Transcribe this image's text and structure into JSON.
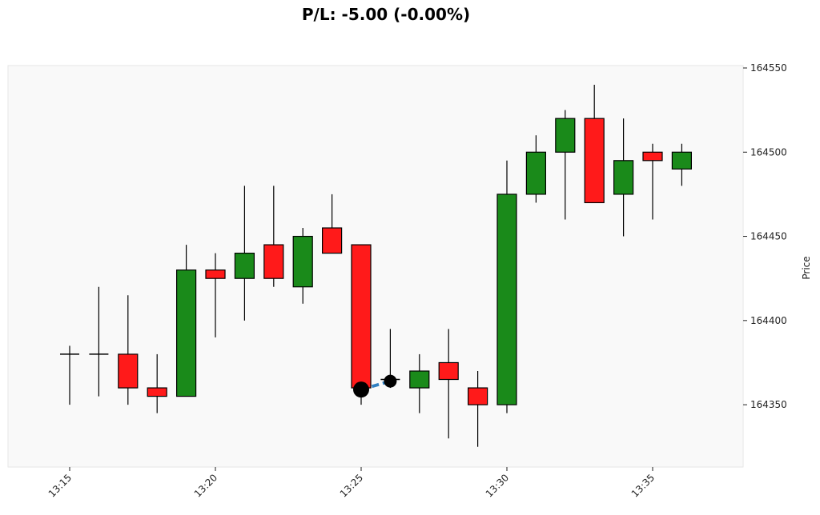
{
  "chart_data": {
    "type": "candlestick",
    "title": "P/L: -5.00 (-0.00%)",
    "ylabel": "Price",
    "xlabel": "",
    "ylim": [
      164313,
      164550
    ],
    "yticks": [
      164350,
      164400,
      164450,
      164500,
      164550
    ],
    "xticks": [
      {
        "t": "13:15",
        "label": "13:15"
      },
      {
        "t": "13:20",
        "label": "13:20"
      },
      {
        "t": "13:25",
        "label": "13:25"
      },
      {
        "t": "13:30",
        "label": "13:30"
      },
      {
        "t": "13:35",
        "label": "13:35"
      }
    ],
    "grid": false,
    "colors": {
      "up": "#1a8a1a",
      "down": "#ff1a1a",
      "background": "#f9f9f9",
      "trade_line": "#2f7fc1",
      "marker": "#000000"
    },
    "candles": [
      {
        "t": "13:15",
        "open": 164380,
        "high": 164385,
        "low": 164350,
        "close": 164380
      },
      {
        "t": "13:16",
        "open": 164380,
        "high": 164420,
        "low": 164355,
        "close": 164380
      },
      {
        "t": "13:17",
        "open": 164380,
        "high": 164415,
        "low": 164350,
        "close": 164360
      },
      {
        "t": "13:18",
        "open": 164360,
        "high": 164380,
        "low": 164345,
        "close": 164355
      },
      {
        "t": "13:19",
        "open": 164355,
        "high": 164445,
        "low": 164355,
        "close": 164430
      },
      {
        "t": "13:20",
        "open": 164430,
        "high": 164440,
        "low": 164390,
        "close": 164425
      },
      {
        "t": "13:21",
        "open": 164425,
        "high": 164480,
        "low": 164400,
        "close": 164440
      },
      {
        "t": "13:22",
        "open": 164445,
        "high": 164480,
        "low": 164420,
        "close": 164425
      },
      {
        "t": "13:23",
        "open": 164420,
        "high": 164455,
        "low": 164410,
        "close": 164450
      },
      {
        "t": "13:24",
        "open": 164455,
        "high": 164475,
        "low": 164440,
        "close": 164440
      },
      {
        "t": "13:25",
        "open": 164445,
        "high": 164445,
        "low": 164350,
        "close": 164360
      },
      {
        "t": "13:26",
        "open": 164365,
        "high": 164395,
        "low": 164360,
        "close": 164365
      },
      {
        "t": "13:27",
        "open": 164360,
        "high": 164380,
        "low": 164345,
        "close": 164370
      },
      {
        "t": "13:28",
        "open": 164375,
        "high": 164395,
        "low": 164330,
        "close": 164365
      },
      {
        "t": "13:29",
        "open": 164360,
        "high": 164370,
        "low": 164325,
        "close": 164350
      },
      {
        "t": "13:30",
        "open": 164350,
        "high": 164495,
        "low": 164345,
        "close": 164475
      },
      {
        "t": "13:31",
        "open": 164475,
        "high": 164510,
        "low": 164470,
        "close": 164500
      },
      {
        "t": "13:32",
        "open": 164500,
        "high": 164525,
        "low": 164460,
        "close": 164520
      },
      {
        "t": "13:33",
        "open": 164520,
        "high": 164540,
        "low": 164470,
        "close": 164470
      },
      {
        "t": "13:34",
        "open": 164475,
        "high": 164520,
        "low": 164450,
        "close": 164495
      },
      {
        "t": "13:35",
        "open": 164500,
        "high": 164505,
        "low": 164460,
        "close": 164495
      },
      {
        "t": "13:36",
        "open": 164490,
        "high": 164505,
        "low": 164480,
        "close": 164500
      }
    ],
    "trade": {
      "entry": {
        "t": "13:25",
        "price": 164359
      },
      "exit": {
        "t": "13:26",
        "price": 164364
      }
    }
  }
}
